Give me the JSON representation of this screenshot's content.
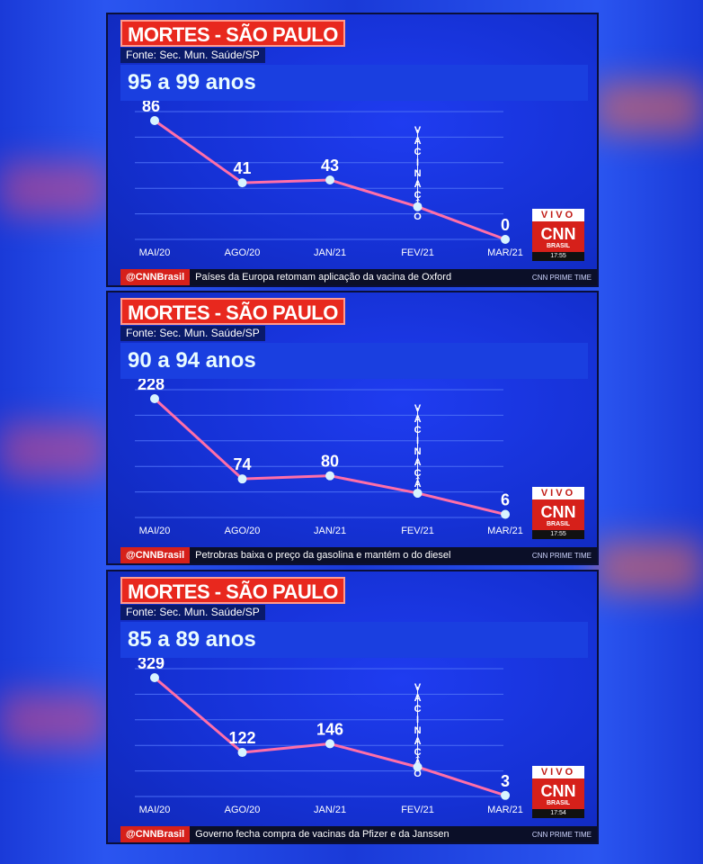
{
  "colors": {
    "accent": "#e8281e",
    "line": "#ff6fa8",
    "point": "#d8f4ff",
    "grid": "#4a6cf4"
  },
  "panels": [
    {
      "title": "MORTES - SÃO PAULO",
      "source": "Fonte: Sec. Mun. Saúde/SP",
      "age_band": "95 a 99 anos",
      "vaccination_letters": [
        "V",
        "A",
        "C",
        "I",
        "N",
        "A",
        "Ç",
        "Ã",
        "O"
      ],
      "live": {
        "vivo": "VIVO",
        "logo": "CNN",
        "sub": "BRASIL",
        "time": "17:55"
      },
      "ticker": {
        "brand": "@CNNBrasil",
        "headline": "Países da Europa retomam aplicação da vacina de Oxford",
        "show": "CNN PRIME TIME"
      },
      "chart_data": {
        "type": "line",
        "categories": [
          "MAI/20",
          "AGO/20",
          "JAN/21",
          "FEV/21",
          "MAR/21"
        ],
        "values": [
          86,
          41,
          43,
          null,
          0
        ],
        "annotation_at": "FEV/21",
        "data_labels": [
          "86",
          "41",
          "43",
          "",
          "0"
        ]
      }
    },
    {
      "title": "MORTES - SÃO PAULO",
      "source": "Fonte: Sec. Mun. Saúde/SP",
      "age_band": "90 a 94 anos",
      "vaccination_letters": [
        "V",
        "A",
        "C",
        "I",
        "N",
        "A",
        "Ç",
        "Ã",
        "O"
      ],
      "live": {
        "vivo": "VIVO",
        "logo": "CNN",
        "sub": "BRASIL",
        "time": "17:55"
      },
      "ticker": {
        "brand": "@CNNBrasil",
        "headline": "Petrobras baixa o preço da gasolina e mantém o do diesel",
        "show": "CNN PRIME TIME"
      },
      "chart_data": {
        "type": "line",
        "categories": [
          "MAI/20",
          "AGO/20",
          "JAN/21",
          "FEV/21",
          "MAR/21"
        ],
        "values": [
          228,
          74,
          80,
          null,
          6
        ],
        "annotation_at": "FEV/21",
        "data_labels": [
          "228",
          "74",
          "80",
          "",
          "6"
        ]
      }
    },
    {
      "title": "MORTES - SÃO PAULO",
      "source": "Fonte: Sec. Mun. Saúde/SP",
      "age_band": "85 a 89 anos",
      "vaccination_letters": [
        "V",
        "A",
        "C",
        "I",
        "N",
        "A",
        "Ç",
        "Ã",
        "O"
      ],
      "live": {
        "vivo": "VIVO",
        "logo": "CNN",
        "sub": "BRASIL",
        "time": "17:54"
      },
      "ticker": {
        "brand": "@CNNBrasil",
        "headline": "Governo fecha compra de vacinas da Pfizer e da Janssen",
        "show": "CNN PRIME TIME"
      },
      "chart_data": {
        "type": "line",
        "categories": [
          "MAI/20",
          "AGO/20",
          "JAN/21",
          "FEV/21",
          "MAR/21"
        ],
        "values": [
          329,
          122,
          146,
          null,
          3
        ],
        "annotation_at": "FEV/21",
        "data_labels": [
          "329",
          "122",
          "146",
          "",
          "3"
        ]
      }
    }
  ]
}
